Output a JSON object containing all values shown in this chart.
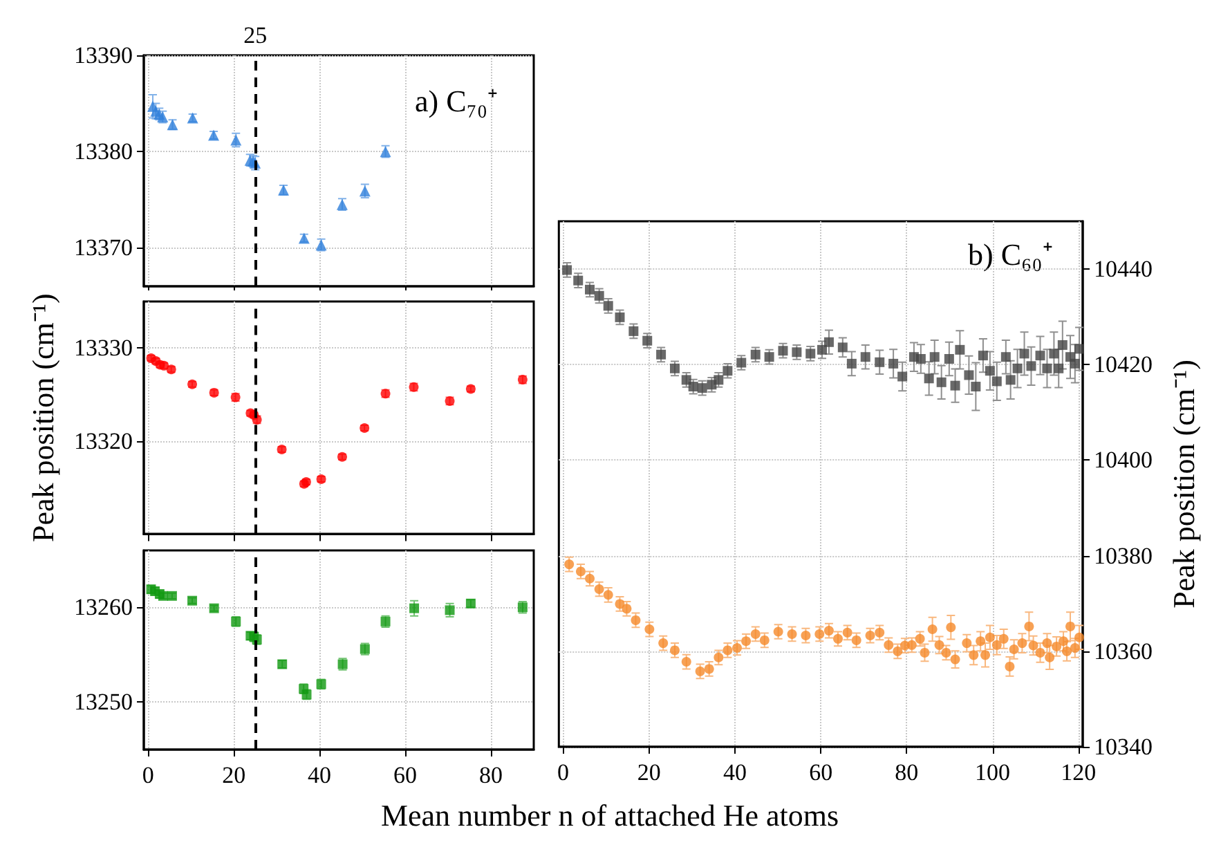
{
  "chart_data": [
    {
      "type": "scatter",
      "xlim": [
        -1,
        90
      ],
      "xticks": [
        0,
        20,
        40,
        60,
        80
      ],
      "ylim": [
        13366,
        13390
      ],
      "yticks": [
        13370,
        13380,
        13390
      ],
      "grid": true,
      "tick_labels": "y",
      "marker": "triangle",
      "annotations": [
        "a) C₇₀⁺"
      ],
      "ref_lines": [
        {
          "axis": "x",
          "value": 25,
          "label": "25",
          "line_style": "dashed",
          "color": "#000000"
        }
      ],
      "series": [
        {
          "color": "#2f7fdb",
          "x": [
            1.1,
            1.8,
            2.6,
            3.4,
            5.7,
            10.4,
            15.3,
            20.5,
            23.8,
            24.5,
            25.0,
            31.6,
            36.4,
            40.4,
            45.3,
            50.6,
            55.4
          ],
          "values": [
            13384.7,
            13384.2,
            13383.9,
            13383.6,
            13382.8,
            13383.5,
            13381.7,
            13381.2,
            13379.1,
            13379.0,
            13378.8,
            13376.0,
            13371.0,
            13370.3,
            13374.5,
            13375.9,
            13380.0
          ],
          "errors": [
            1.2,
            0.8,
            0.6,
            0.6,
            0.5,
            0.4,
            0.4,
            0.7,
            0.6,
            0.6,
            0.7,
            0.5,
            0.4,
            0.6,
            0.6,
            0.7,
            0.6
          ]
        }
      ]
    },
    {
      "type": "scatter",
      "xlim": [
        -1,
        90
      ],
      "xticks": [
        0,
        20,
        40,
        60,
        80
      ],
      "ylim": [
        13310,
        13335
      ],
      "yticks": [
        13320,
        13330
      ],
      "grid": true,
      "tick_labels": "y",
      "marker": "circle",
      "ylabel": "Peak position (cm⁻¹)",
      "ref_lines": [
        {
          "axis": "x",
          "value": 25,
          "line_style": "dashed",
          "color": "#000000"
        }
      ],
      "series": [
        {
          "color": "#ff0000",
          "x": [
            0.7,
            1.8,
            2.8,
            3.7,
            5.4,
            10.3,
            15.4,
            20.4,
            23.9,
            24.7,
            25.4,
            31.2,
            36.4,
            36.9,
            40.4,
            45.3,
            50.5,
            55.4,
            62.0,
            70.4,
            75.3,
            87.4
          ],
          "values": [
            13328.9,
            13328.6,
            13328.2,
            13328.1,
            13327.7,
            13326.1,
            13325.2,
            13324.7,
            13323.0,
            13322.8,
            13322.3,
            13319.1,
            13315.4,
            13315.6,
            13315.9,
            13318.3,
            13321.4,
            13325.1,
            13325.8,
            13324.3,
            13325.6,
            13326.6
          ],
          "errors": [
            0.3,
            0.3,
            0.3,
            0.3,
            0.3,
            0.3,
            0.3,
            0.4,
            0.3,
            0.3,
            0.4,
            0.3,
            0.3,
            0.3,
            0.3,
            0.3,
            0.3,
            0.4,
            0.4,
            0.4,
            0.3,
            0.4
          ]
        }
      ]
    },
    {
      "type": "scatter",
      "xlim": [
        -1,
        90
      ],
      "xticks": [
        0,
        20,
        40,
        60,
        80
      ],
      "ylim": [
        13245,
        13266
      ],
      "yticks": [
        13250,
        13260
      ],
      "grid": true,
      "marker": "square",
      "ref_lines": [
        {
          "axis": "x",
          "value": 25,
          "line_style": "dashed",
          "color": "#000000"
        }
      ],
      "series": [
        {
          "color": "#109910",
          "x": [
            0.7,
            1.6,
            2.7,
            3.5,
            5.6,
            10.3,
            15.4,
            20.5,
            23.9,
            24.7,
            25.4,
            31.3,
            36.3,
            37.0,
            40.4,
            45.4,
            50.6,
            55.4,
            62.1,
            70.4,
            75.3,
            87.4
          ],
          "values": [
            13261.9,
            13261.7,
            13261.4,
            13261.2,
            13261.2,
            13260.7,
            13259.9,
            13258.5,
            13257.0,
            13256.9,
            13256.6,
            13254.0,
            13251.4,
            13250.8,
            13251.9,
            13254.0,
            13255.6,
            13258.5,
            13259.9,
            13259.7,
            13260.4,
            13260.0
          ],
          "errors": [
            0.4,
            0.4,
            0.4,
            0.3,
            0.3,
            0.3,
            0.3,
            0.5,
            0.4,
            0.5,
            0.5,
            0.4,
            0.5,
            0.5,
            0.5,
            0.6,
            0.6,
            0.6,
            0.8,
            0.7,
            0.4,
            0.6
          ]
        }
      ]
    },
    {
      "type": "scatter",
      "xlim": [
        -1,
        121
      ],
      "xticks": [
        0,
        20,
        40,
        60,
        80,
        100,
        120
      ],
      "ylim": [
        10340,
        10450
      ],
      "yticks": [
        10340,
        10360,
        10380,
        10400,
        10420,
        10440
      ],
      "grid": true,
      "xlabel": "Mean number n of attached He atoms",
      "ylabel": "Peak position (cm⁻¹)",
      "annotations": [
        "b) C₆₀⁺"
      ],
      "series": [
        {
          "color": "#444444",
          "marker": "square",
          "x": [
            0.9,
            3.5,
            6.2,
            8.4,
            10.5,
            13.2,
            16.4,
            19.6,
            22.8,
            26.0,
            28.7,
            30.3,
            32.4,
            34.6,
            36.2,
            38.3,
            41.5,
            44.8,
            48.0,
            51.2,
            54.4,
            57.6,
            60.3,
            61.9,
            65.1,
            67.2,
            70.4,
            73.7,
            76.9,
            79.0,
            81.7,
            83.3,
            85.2,
            86.5,
            88.1,
            89.9,
            91.3,
            92.4,
            94.5,
            96.1,
            97.8,
            99.4,
            101.0,
            103.1,
            104.2,
            105.8,
            107.4,
            109.0,
            111.1,
            112.7,
            114.3,
            115.4,
            116.3,
            118.1,
            119.2,
            120.2
          ],
          "values": [
            10439.8,
            10437.6,
            10435.7,
            10434.4,
            10432.3,
            10429.9,
            10427.0,
            10425.0,
            10422.1,
            10419.2,
            10416.8,
            10415.4,
            10415.1,
            10415.8,
            10416.8,
            10418.7,
            10420.4,
            10422.1,
            10421.6,
            10422.9,
            10422.6,
            10422.3,
            10423.1,
            10424.7,
            10423.6,
            10420.2,
            10421.6,
            10420.5,
            10420.2,
            10417.5,
            10421.6,
            10421.2,
            10417.1,
            10421.6,
            10416.3,
            10421.2,
            10415.6,
            10423.1,
            10417.8,
            10415.4,
            10421.9,
            10418.7,
            10416.5,
            10421.6,
            10416.8,
            10419.2,
            10422.3,
            10419.7,
            10421.9,
            10419.2,
            10422.3,
            10419.2,
            10424.1,
            10421.6,
            10420.2,
            10423.3
          ],
          "errors": [
            1.5,
            1.5,
            1.5,
            1.5,
            1.5,
            1.5,
            1.5,
            1.5,
            1.5,
            1.5,
            1.5,
            1.5,
            1.5,
            1.5,
            1.5,
            1.5,
            1.5,
            1.5,
            1.5,
            1.5,
            1.5,
            1.5,
            1.8,
            2.5,
            2.0,
            2.5,
            2.5,
            2.5,
            3.0,
            3.0,
            3.0,
            3.0,
            3.5,
            3.5,
            3.5,
            3.5,
            3.5,
            4.0,
            4.0,
            5.0,
            3.5,
            4.0,
            4.0,
            3.5,
            4.0,
            4.0,
            4.5,
            4.0,
            4.0,
            4.0,
            4.5,
            4.0,
            5.0,
            4.5,
            4.0,
            4.5
          ]
        },
        {
          "color": "#f5892a",
          "marker": "circle",
          "x": [
            1.4,
            4.1,
            6.2,
            8.4,
            10.5,
            13.2,
            14.8,
            16.9,
            20.1,
            23.3,
            26.0,
            28.7,
            31.9,
            34.0,
            36.2,
            38.3,
            40.5,
            42.6,
            44.8,
            46.9,
            50.1,
            53.3,
            56.5,
            59.7,
            61.9,
            64.0,
            66.2,
            68.3,
            71.5,
            73.7,
            75.8,
            77.9,
            79.6,
            81.2,
            83.1,
            84.2,
            86.0,
            87.6,
            89.2,
            90.3,
            91.3,
            94.0,
            95.6,
            97.2,
            98.3,
            99.4,
            101.0,
            102.6,
            104.0,
            105.0,
            106.9,
            108.5,
            109.5,
            111.1,
            112.7,
            113.3,
            114.9,
            116.5,
            117.3,
            118.1,
            119.2,
            120.2
          ],
          "values": [
            10378.2,
            10376.7,
            10375.2,
            10373.0,
            10371.8,
            10369.9,
            10368.9,
            10366.5,
            10364.6,
            10361.7,
            10360.2,
            10357.8,
            10355.8,
            10356.3,
            10358.7,
            10360.2,
            10360.7,
            10362.1,
            10363.6,
            10362.3,
            10364.1,
            10363.6,
            10363.3,
            10363.6,
            10364.3,
            10362.6,
            10363.9,
            10362.3,
            10363.3,
            10363.9,
            10361.3,
            10360.0,
            10361.2,
            10361.3,
            10362.6,
            10359.7,
            10364.6,
            10361.3,
            10359.7,
            10365.0,
            10358.3,
            10361.7,
            10359.2,
            10362.1,
            10359.2,
            10362.9,
            10361.3,
            10362.6,
            10356.8,
            10360.4,
            10361.7,
            10365.2,
            10361.2,
            10359.7,
            10361.7,
            10358.7,
            10361.0,
            10362.1,
            10360.0,
            10365.2,
            10360.7,
            10362.9
          ],
          "errors": [
            1.5,
            1.5,
            1.5,
            1.5,
            1.5,
            1.5,
            1.5,
            1.5,
            1.5,
            1.5,
            1.5,
            1.5,
            1.5,
            1.5,
            1.5,
            1.5,
            1.5,
            1.5,
            1.5,
            1.5,
            1.5,
            1.5,
            1.5,
            1.5,
            1.5,
            1.5,
            1.5,
            1.5,
            1.5,
            1.5,
            1.5,
            1.5,
            1.5,
            1.5,
            1.5,
            1.8,
            2.5,
            1.8,
            1.5,
            2.5,
            1.8,
            1.8,
            2.0,
            2.0,
            2.5,
            2.5,
            2.0,
            2.0,
            2.0,
            2.0,
            2.0,
            3.0,
            2.0,
            2.0,
            2.0,
            2.5,
            2.0,
            2.0,
            2.0,
            3.0,
            2.0,
            2.5
          ]
        }
      ]
    }
  ]
}
